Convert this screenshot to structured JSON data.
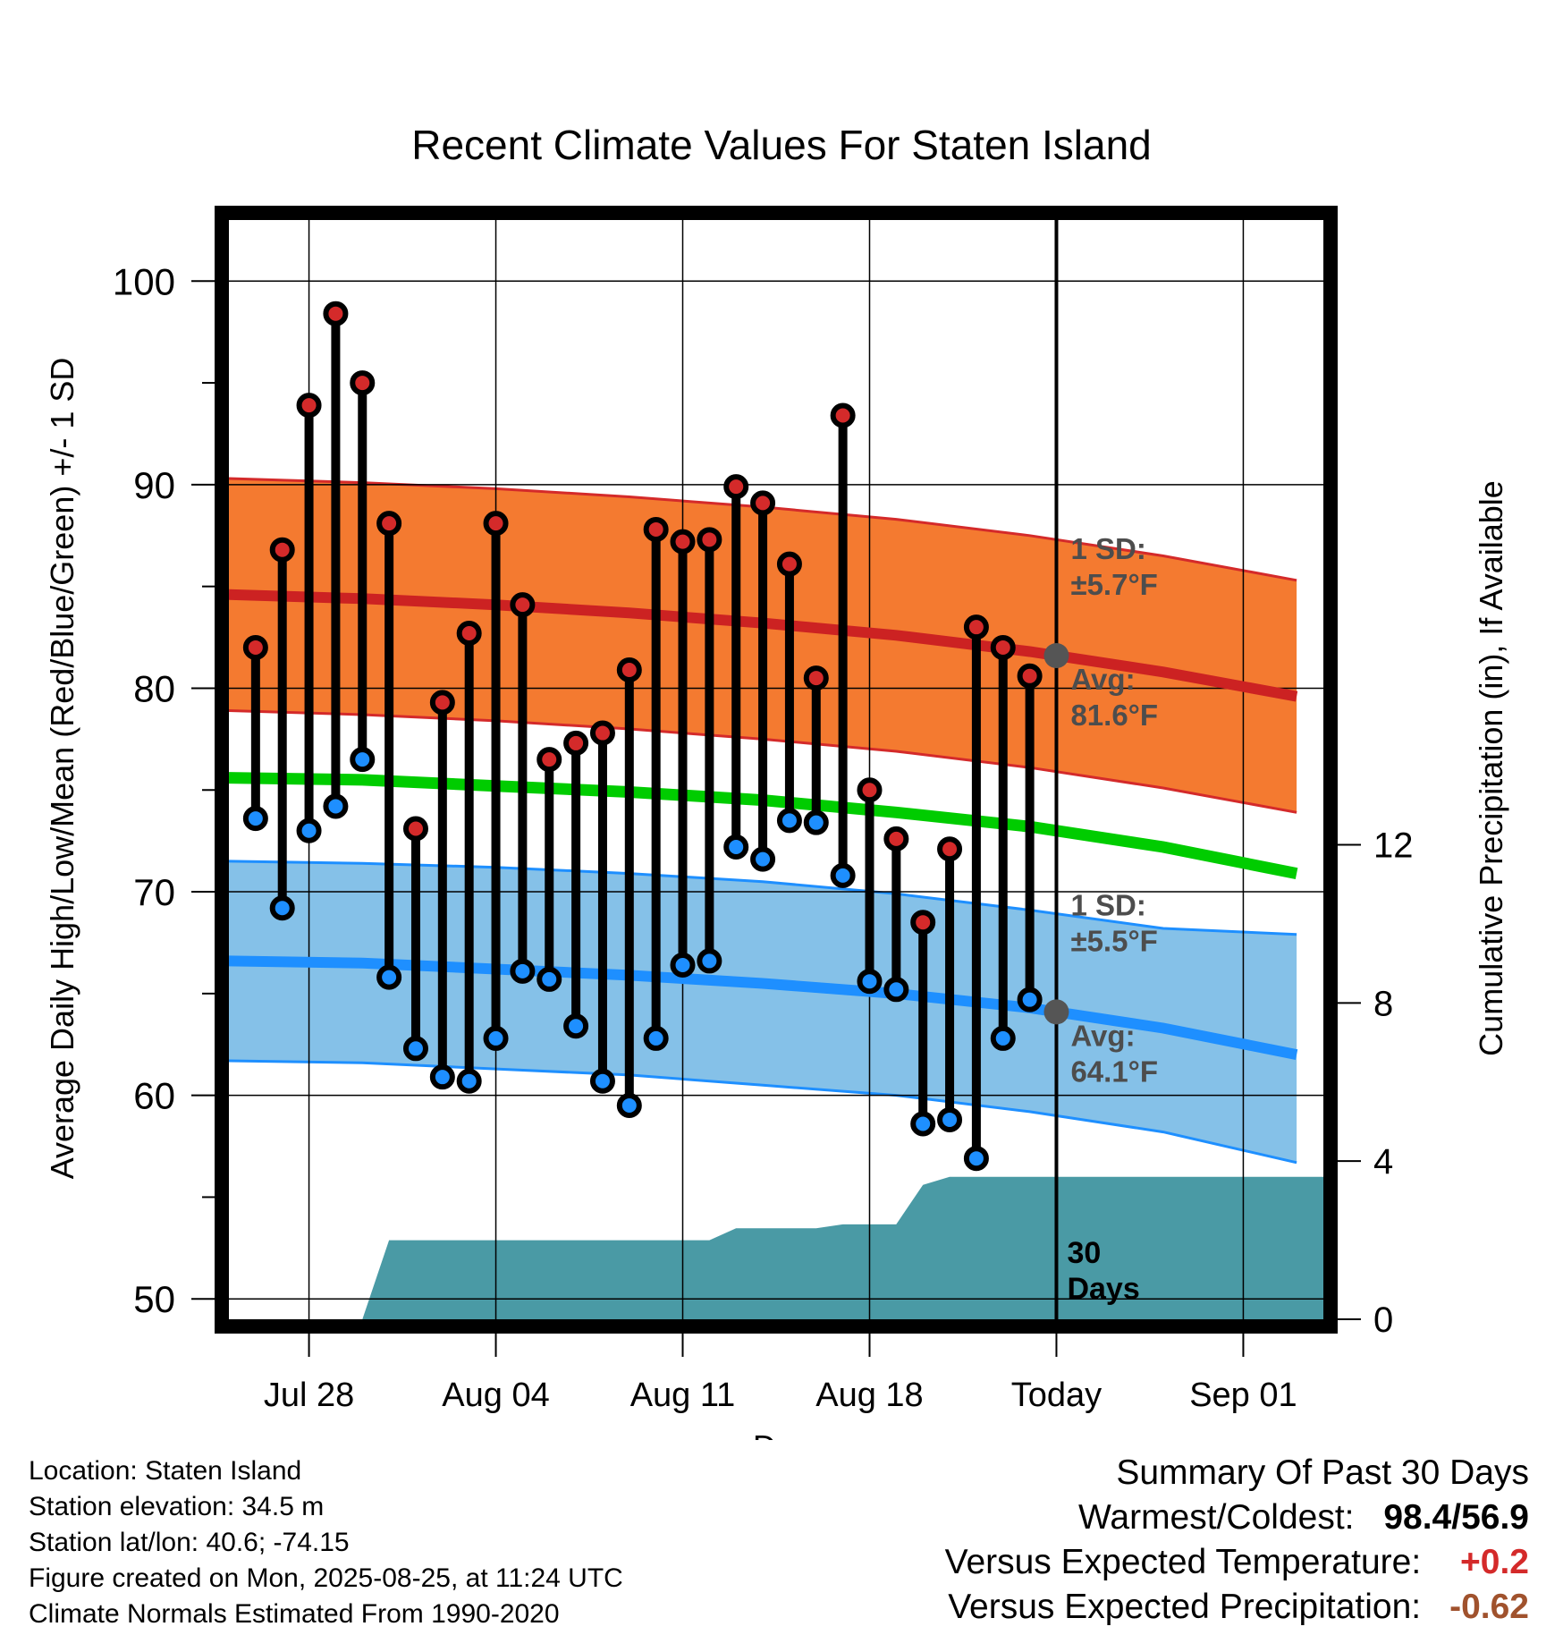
{
  "colors": {
    "high_band": "#f47a30",
    "high_band_edge": "#d42a2a",
    "high_avg_line": "#cc2222",
    "mean_line": "#00cc00",
    "low_band": "#85c1e8",
    "low_band_edge": "#1e8fff",
    "low_avg_line": "#1e8fff",
    "precip_fill": "#4a9aa5",
    "high_dot": "#d42a2a",
    "low_dot": "#1e8fff",
    "today_dot": "#555555",
    "annotation_text": "#4d4d4d",
    "temp_anomaly": "#d42a2a",
    "precip_anomaly": "#a0522d"
  },
  "chart_data": {
    "type": "line",
    "title": "Recent Climate Values For Staten Island",
    "xlabel": "Day",
    "ylabel": "Average Daily High/Low/Mean (Red/Blue/Green) +/- 1 SD",
    "y2label": "Cumulative Precipitation (in), If Available",
    "xlim": [
      "2025-07-25",
      "2025-09-04"
    ],
    "ylim": [
      49,
      103
    ],
    "y2lim": [
      0,
      27.8
    ],
    "grid": true,
    "x_ticks": [
      {
        "date": "2025-07-28",
        "label": "Jul 28"
      },
      {
        "date": "2025-08-04",
        "label": "Aug 04"
      },
      {
        "date": "2025-08-11",
        "label": "Aug 11"
      },
      {
        "date": "2025-08-18",
        "label": "Aug 18"
      },
      {
        "date": "2025-08-25",
        "label": "Today"
      },
      {
        "date": "2025-09-01",
        "label": "Sep 01"
      }
    ],
    "y_ticks": [
      50,
      60,
      70,
      80,
      90,
      100
    ],
    "y2_ticks": [
      0,
      4,
      8,
      12
    ],
    "today": "2025-08-25",
    "today_label_line1": "30",
    "today_label_line2": "Days",
    "daily_observations": {
      "dates": [
        "2025-07-26",
        "2025-07-27",
        "2025-07-28",
        "2025-07-29",
        "2025-07-30",
        "2025-07-31",
        "2025-08-01",
        "2025-08-02",
        "2025-08-03",
        "2025-08-04",
        "2025-08-05",
        "2025-08-06",
        "2025-08-07",
        "2025-08-08",
        "2025-08-09",
        "2025-08-10",
        "2025-08-11",
        "2025-08-12",
        "2025-08-13",
        "2025-08-14",
        "2025-08-15",
        "2025-08-16",
        "2025-08-17",
        "2025-08-18",
        "2025-08-19",
        "2025-08-20",
        "2025-08-21",
        "2025-08-22",
        "2025-08-23",
        "2025-08-24"
      ],
      "high": [
        82.0,
        86.8,
        93.9,
        98.4,
        95.0,
        88.1,
        73.1,
        79.3,
        82.7,
        88.1,
        84.1,
        76.5,
        77.3,
        77.8,
        80.9,
        87.8,
        87.2,
        87.3,
        89.9,
        89.1,
        86.1,
        80.5,
        93.4,
        75.0,
        72.6,
        68.5,
        72.1,
        83.0,
        82.0,
        80.6
      ],
      "low": [
        73.6,
        69.2,
        73.0,
        74.2,
        76.5,
        65.8,
        62.3,
        60.9,
        60.7,
        62.8,
        66.1,
        65.7,
        63.4,
        60.7,
        59.5,
        62.8,
        66.4,
        66.6,
        72.2,
        71.6,
        73.5,
        73.4,
        70.8,
        65.6,
        65.2,
        58.6,
        58.8,
        56.9,
        62.8,
        64.7
      ]
    },
    "normals": {
      "dates": [
        "2025-07-25",
        "2025-07-30",
        "2025-08-04",
        "2025-08-09",
        "2025-08-14",
        "2025-08-19",
        "2025-08-24",
        "2025-08-29",
        "2025-09-03"
      ],
      "high_avg": [
        84.6,
        84.4,
        84.1,
        83.7,
        83.2,
        82.6,
        81.8,
        80.8,
        79.6
      ],
      "high_upper": [
        90.3,
        90.1,
        89.8,
        89.4,
        88.9,
        88.3,
        87.5,
        86.5,
        85.3
      ],
      "high_lower": [
        78.9,
        78.7,
        78.4,
        78.0,
        77.5,
        76.9,
        76.1,
        75.1,
        73.9
      ],
      "mean_avg": [
        75.6,
        75.5,
        75.2,
        74.9,
        74.5,
        73.9,
        73.2,
        72.2,
        70.9
      ],
      "low_avg": [
        66.6,
        66.5,
        66.2,
        65.9,
        65.5,
        65.0,
        64.3,
        63.3,
        62.0
      ],
      "low_upper": [
        71.5,
        71.4,
        71.2,
        70.9,
        70.5,
        69.9,
        69.1,
        68.2,
        67.9
      ],
      "low_lower": [
        61.7,
        61.6,
        61.3,
        61.0,
        60.5,
        60.0,
        59.2,
        58.2,
        56.7
      ]
    },
    "cumulative_precipitation": {
      "dates": [
        "2025-07-26",
        "2025-07-30",
        "2025-07-31",
        "2025-08-12",
        "2025-08-13",
        "2025-08-16",
        "2025-08-17",
        "2025-08-19",
        "2025-08-20",
        "2025-08-21",
        "2025-09-04"
      ],
      "values": [
        0.0,
        0.0,
        2.0,
        2.0,
        2.3,
        2.3,
        2.4,
        2.4,
        3.4,
        3.6,
        3.6
      ]
    },
    "annotations": {
      "high_sd_line1": "1 SD:",
      "high_sd_line2": "±5.7°F",
      "high_avg_line1": "Avg:",
      "high_avg_line2": "81.6°F",
      "high_today_value": 81.6,
      "low_sd_line1": "1 SD:",
      "low_sd_line2": "±5.5°F",
      "low_avg_line1": "Avg:",
      "low_avg_line2": "64.1°F",
      "low_today_value": 64.1
    }
  },
  "footer": {
    "location": "Location: Staten Island",
    "elevation": "Station elevation: 34.5 m",
    "latlon": "Station lat/lon: 40.6; -74.15",
    "created": "Figure created on Mon, 2025-08-25, at 11:24 UTC",
    "normals": "Climate Normals Estimated From 1990-2020"
  },
  "summary": {
    "heading": "Summary Of Past 30 Days",
    "warm_cold_label": "Warmest/Coldest:",
    "warm_cold_value": "98.4/56.9",
    "temp_label": "Versus Expected Temperature:",
    "temp_value": "+0.2",
    "precip_label": "Versus Expected Precipitation:",
    "precip_value": "-0.62"
  }
}
